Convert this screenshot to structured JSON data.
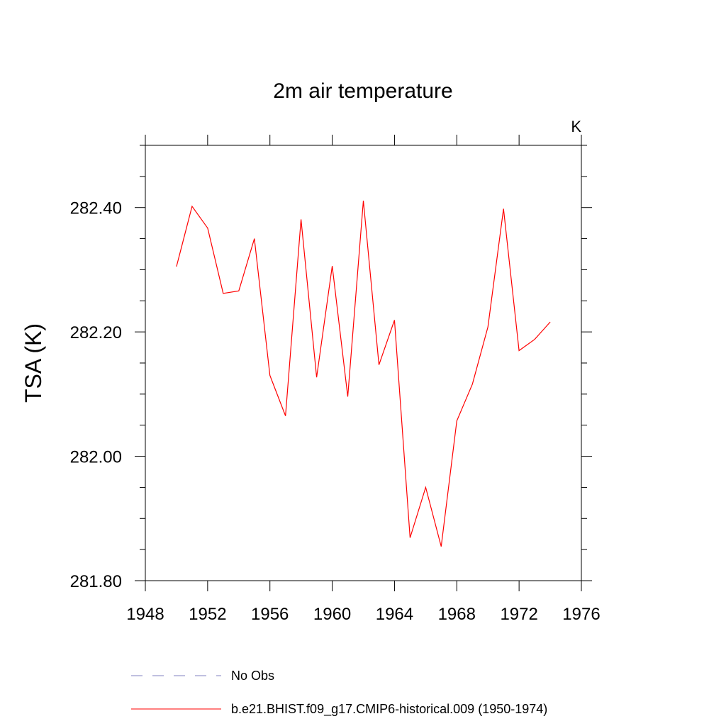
{
  "chart_data": {
    "type": "line",
    "title": "2m air temperature",
    "units_label": "K",
    "ylabel": "TSA  (K)",
    "xlabel": "",
    "xlim": [
      1948,
      1976
    ],
    "ylim": [
      281.8,
      282.5
    ],
    "x_ticks": [
      1948,
      1952,
      1956,
      1960,
      1964,
      1968,
      1972,
      1976
    ],
    "y_ticks": [
      281.8,
      282.0,
      282.2,
      282.4
    ],
    "y_tick_labels": [
      "281.80",
      "282.00",
      "282.20",
      "282.40"
    ],
    "series": [
      {
        "name": "b.e21.BHIST.f09_g17.CMIP6-historical.009 (1950-1974)",
        "color": "#ff0000",
        "x": [
          1950,
          1951,
          1952,
          1953,
          1954,
          1955,
          1956,
          1957,
          1958,
          1959,
          1960,
          1961,
          1962,
          1963,
          1964,
          1965,
          1966,
          1967,
          1968,
          1969,
          1970,
          1971,
          1972,
          1973,
          1974
        ],
        "y": [
          282.305,
          282.402,
          282.367,
          282.262,
          282.266,
          282.35,
          282.13,
          282.065,
          282.381,
          282.127,
          282.306,
          282.096,
          282.411,
          282.147,
          282.219,
          281.869,
          281.95,
          281.855,
          282.057,
          282.116,
          282.208,
          282.398,
          282.17,
          282.188,
          282.216
        ]
      }
    ],
    "legend": [
      {
        "label": "No Obs",
        "color": "#8080c0",
        "style": "dashed"
      },
      {
        "label": "b.e21.BHIST.f09_g17.CMIP6-historical.009 (1950-1974)",
        "color": "#ff0000",
        "style": "solid"
      }
    ],
    "legend_placement": "bottom",
    "grid": false
  }
}
